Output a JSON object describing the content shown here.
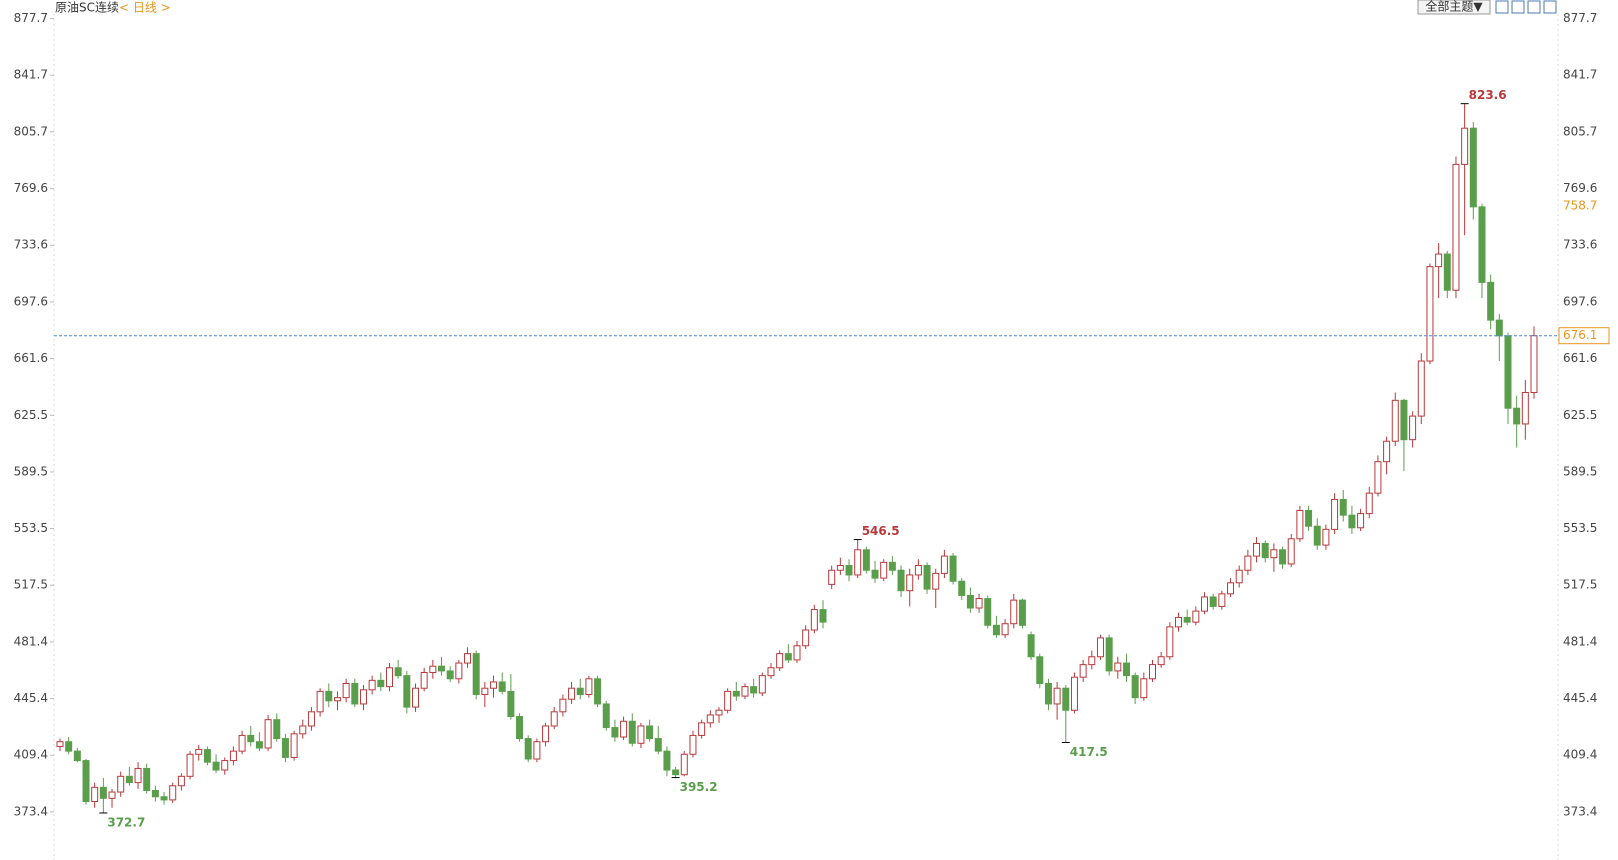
{
  "chart_data": {
    "type": "candlestick",
    "title": "原油SC连续",
    "subtitle": "< 日线 >",
    "up_color": "#b8393c",
    "down_color": "#5a9e4c",
    "last_color": "#e8961e",
    "line_color": "#4a8ad0",
    "ylim": [
      342.8,
      880.6
    ],
    "yticks": [
      877.7,
      841.7,
      805.7,
      769.6,
      733.6,
      697.6,
      661.6,
      625.5,
      589.5,
      553.5,
      517.5,
      481.4,
      445.4,
      409.4,
      373.4
    ],
    "last_price": 676.1,
    "cursor_price": 758.7,
    "markers": [
      372.7,
      395.2,
      546.5,
      417.5,
      823.6
    ],
    "candles": [
      [
        415,
        420,
        412,
        418
      ],
      [
        418,
        421,
        410,
        412
      ],
      [
        412,
        414,
        405,
        406
      ],
      [
        406,
        407,
        378,
        380
      ],
      [
        380,
        392,
        376,
        389
      ],
      [
        389,
        395,
        372.7,
        382
      ],
      [
        382,
        388,
        376,
        386
      ],
      [
        386,
        399,
        383,
        396
      ],
      [
        396,
        402,
        390,
        392
      ],
      [
        392,
        405,
        388,
        401
      ],
      [
        401,
        404,
        385,
        387
      ],
      [
        387,
        390,
        380,
        383
      ],
      [
        383,
        386,
        378,
        381
      ],
      [
        381,
        392,
        379,
        390
      ],
      [
        390,
        398,
        387,
        396
      ],
      [
        396,
        412,
        394,
        410
      ],
      [
        410,
        416,
        406,
        413
      ],
      [
        413,
        415,
        403,
        405
      ],
      [
        405,
        410,
        398,
        400
      ],
      [
        400,
        408,
        397,
        406
      ],
      [
        406,
        415,
        403,
        412
      ],
      [
        412,
        425,
        410,
        422
      ],
      [
        422,
        428,
        415,
        418
      ],
      [
        418,
        424,
        412,
        414
      ],
      [
        414,
        435,
        412,
        432
      ],
      [
        432,
        436,
        418,
        420
      ],
      [
        420,
        423,
        405,
        408
      ],
      [
        408,
        425,
        406,
        423
      ],
      [
        423,
        432,
        420,
        428
      ],
      [
        428,
        440,
        425,
        437
      ],
      [
        437,
        452,
        434,
        450
      ],
      [
        450,
        455,
        440,
        444
      ],
      [
        444,
        450,
        438,
        446
      ],
      [
        446,
        458,
        443,
        455
      ],
      [
        455,
        458,
        440,
        442
      ],
      [
        442,
        454,
        438,
        451
      ],
      [
        451,
        460,
        448,
        457
      ],
      [
        457,
        462,
        450,
        453
      ],
      [
        453,
        468,
        450,
        465
      ],
      [
        465,
        470,
        458,
        460
      ],
      [
        460,
        463,
        436,
        440
      ],
      [
        440,
        455,
        437,
        452
      ],
      [
        452,
        465,
        450,
        462
      ],
      [
        462,
        470,
        458,
        466
      ],
      [
        466,
        472,
        460,
        463
      ],
      [
        463,
        466,
        456,
        458
      ],
      [
        458,
        470,
        455,
        468
      ],
      [
        468,
        478,
        465,
        474
      ],
      [
        474,
        476,
        445,
        448
      ],
      [
        448,
        456,
        440,
        452
      ],
      [
        452,
        460,
        446,
        456
      ],
      [
        456,
        462,
        448,
        450
      ],
      [
        450,
        461,
        432,
        434
      ],
      [
        434,
        436,
        418,
        420
      ],
      [
        420,
        422,
        405,
        407
      ],
      [
        407,
        420,
        405,
        418
      ],
      [
        418,
        430,
        415,
        428
      ],
      [
        428,
        440,
        426,
        437
      ],
      [
        437,
        448,
        434,
        445
      ],
      [
        445,
        456,
        442,
        452
      ],
      [
        452,
        458,
        445,
        448
      ],
      [
        448,
        460,
        446,
        458
      ],
      [
        458,
        460,
        440,
        442
      ],
      [
        442,
        444,
        425,
        427
      ],
      [
        427,
        432,
        418,
        421
      ],
      [
        421,
        434,
        419,
        431
      ],
      [
        431,
        436,
        415,
        417
      ],
      [
        417,
        430,
        414,
        428
      ],
      [
        428,
        432,
        418,
        420
      ],
      [
        420,
        428,
        410,
        412
      ],
      [
        412,
        415,
        396,
        400
      ],
      [
        400,
        402,
        395.2,
        397
      ],
      [
        397,
        412,
        396,
        410
      ],
      [
        410,
        425,
        408,
        422
      ],
      [
        422,
        432,
        420,
        430
      ],
      [
        430,
        438,
        427,
        435
      ],
      [
        435,
        440,
        430,
        438
      ],
      [
        438,
        452,
        436,
        450
      ],
      [
        450,
        456,
        444,
        447
      ],
      [
        447,
        455,
        445,
        453
      ],
      [
        453,
        458,
        446,
        449
      ],
      [
        449,
        462,
        447,
        460
      ],
      [
        460,
        468,
        458,
        465
      ],
      [
        465,
        476,
        463,
        474
      ],
      [
        474,
        480,
        468,
        470
      ],
      [
        470,
        482,
        468,
        479
      ],
      [
        479,
        492,
        477,
        489
      ],
      [
        489,
        505,
        487,
        502
      ],
      [
        502,
        508,
        490,
        494
      ],
      [
        518,
        530,
        515,
        527
      ],
      [
        527,
        535,
        524,
        530
      ],
      [
        530,
        534,
        520,
        524
      ],
      [
        524,
        546.5,
        522,
        540
      ],
      [
        540,
        542,
        525,
        527
      ],
      [
        527,
        533,
        519,
        522
      ],
      [
        522,
        534,
        520,
        532
      ],
      [
        532,
        536,
        524,
        527
      ],
      [
        527,
        530,
        510,
        514
      ],
      [
        514,
        528,
        504,
        524
      ],
      [
        524,
        534,
        521,
        530
      ],
      [
        530,
        532,
        512,
        515
      ],
      [
        515,
        528,
        503,
        525
      ],
      [
        525,
        540,
        522,
        536
      ],
      [
        536,
        538,
        518,
        520
      ],
      [
        520,
        522,
        508,
        511
      ],
      [
        511,
        516,
        500,
        503
      ],
      [
        503,
        512,
        500,
        509
      ],
      [
        509,
        511,
        490,
        492
      ],
      [
        492,
        498,
        484,
        486
      ],
      [
        486,
        496,
        484,
        493
      ],
      [
        493,
        512,
        490,
        508
      ],
      [
        508,
        509,
        490,
        492
      ],
      [
        486,
        488,
        470,
        472
      ],
      [
        472,
        474,
        452,
        455
      ],
      [
        455,
        458,
        438,
        442
      ],
      [
        442,
        456,
        432,
        452
      ],
      [
        452,
        454,
        417.5,
        438
      ],
      [
        438,
        462,
        436,
        459
      ],
      [
        459,
        470,
        456,
        467
      ],
      [
        467,
        476,
        464,
        472
      ],
      [
        472,
        486,
        470,
        484
      ],
      [
        484,
        486,
        460,
        463
      ],
      [
        463,
        472,
        458,
        468
      ],
      [
        468,
        474,
        456,
        460
      ],
      [
        460,
        462,
        442,
        446
      ],
      [
        446,
        462,
        444,
        458
      ],
      [
        458,
        470,
        456,
        467
      ],
      [
        467,
        475,
        465,
        472
      ],
      [
        472,
        494,
        470,
        491
      ],
      [
        491,
        500,
        488,
        497
      ],
      [
        497,
        502,
        492,
        494
      ],
      [
        494,
        504,
        492,
        501
      ],
      [
        501,
        513,
        499,
        510
      ],
      [
        510,
        512,
        502,
        504
      ],
      [
        504,
        514,
        502,
        512
      ],
      [
        512,
        522,
        510,
        519
      ],
      [
        519,
        530,
        516,
        527
      ],
      [
        527,
        540,
        524,
        536
      ],
      [
        536,
        548,
        532,
        544
      ],
      [
        544,
        546,
        532,
        535
      ],
      [
        535,
        544,
        526,
        540
      ],
      [
        540,
        542,
        528,
        531
      ],
      [
        531,
        550,
        529,
        547
      ],
      [
        547,
        568,
        545,
        565
      ],
      [
        565,
        568,
        552,
        555
      ],
      [
        555,
        560,
        540,
        543
      ],
      [
        543,
        556,
        540,
        553
      ],
      [
        553,
        576,
        550,
        572
      ],
      [
        572,
        578,
        558,
        562
      ],
      [
        562,
        568,
        550,
        554
      ],
      [
        554,
        566,
        552,
        563
      ],
      [
        563,
        580,
        560,
        576
      ],
      [
        576,
        600,
        574,
        596
      ],
      [
        596,
        612,
        588,
        609
      ],
      [
        609,
        640,
        606,
        635
      ],
      [
        635,
        636,
        590,
        610
      ],
      [
        610,
        628,
        605,
        625
      ],
      [
        625,
        665,
        620,
        660
      ],
      [
        660,
        722,
        658,
        720
      ],
      [
        720,
        735,
        700,
        728
      ],
      [
        728,
        730,
        700,
        705
      ],
      [
        705,
        790,
        700,
        785
      ],
      [
        785,
        823.6,
        740,
        808
      ],
      [
        808,
        812,
        750,
        758
      ],
      [
        758,
        760,
        700,
        710
      ],
      [
        710,
        715,
        680,
        686
      ],
      [
        686,
        690,
        660,
        676
      ],
      [
        676,
        678,
        620,
        630
      ],
      [
        630,
        638,
        605,
        620
      ],
      [
        620,
        648,
        610,
        640
      ],
      [
        640,
        682,
        636,
        676.1
      ]
    ]
  },
  "toolbar": {
    "theme": "全部主题▼"
  }
}
